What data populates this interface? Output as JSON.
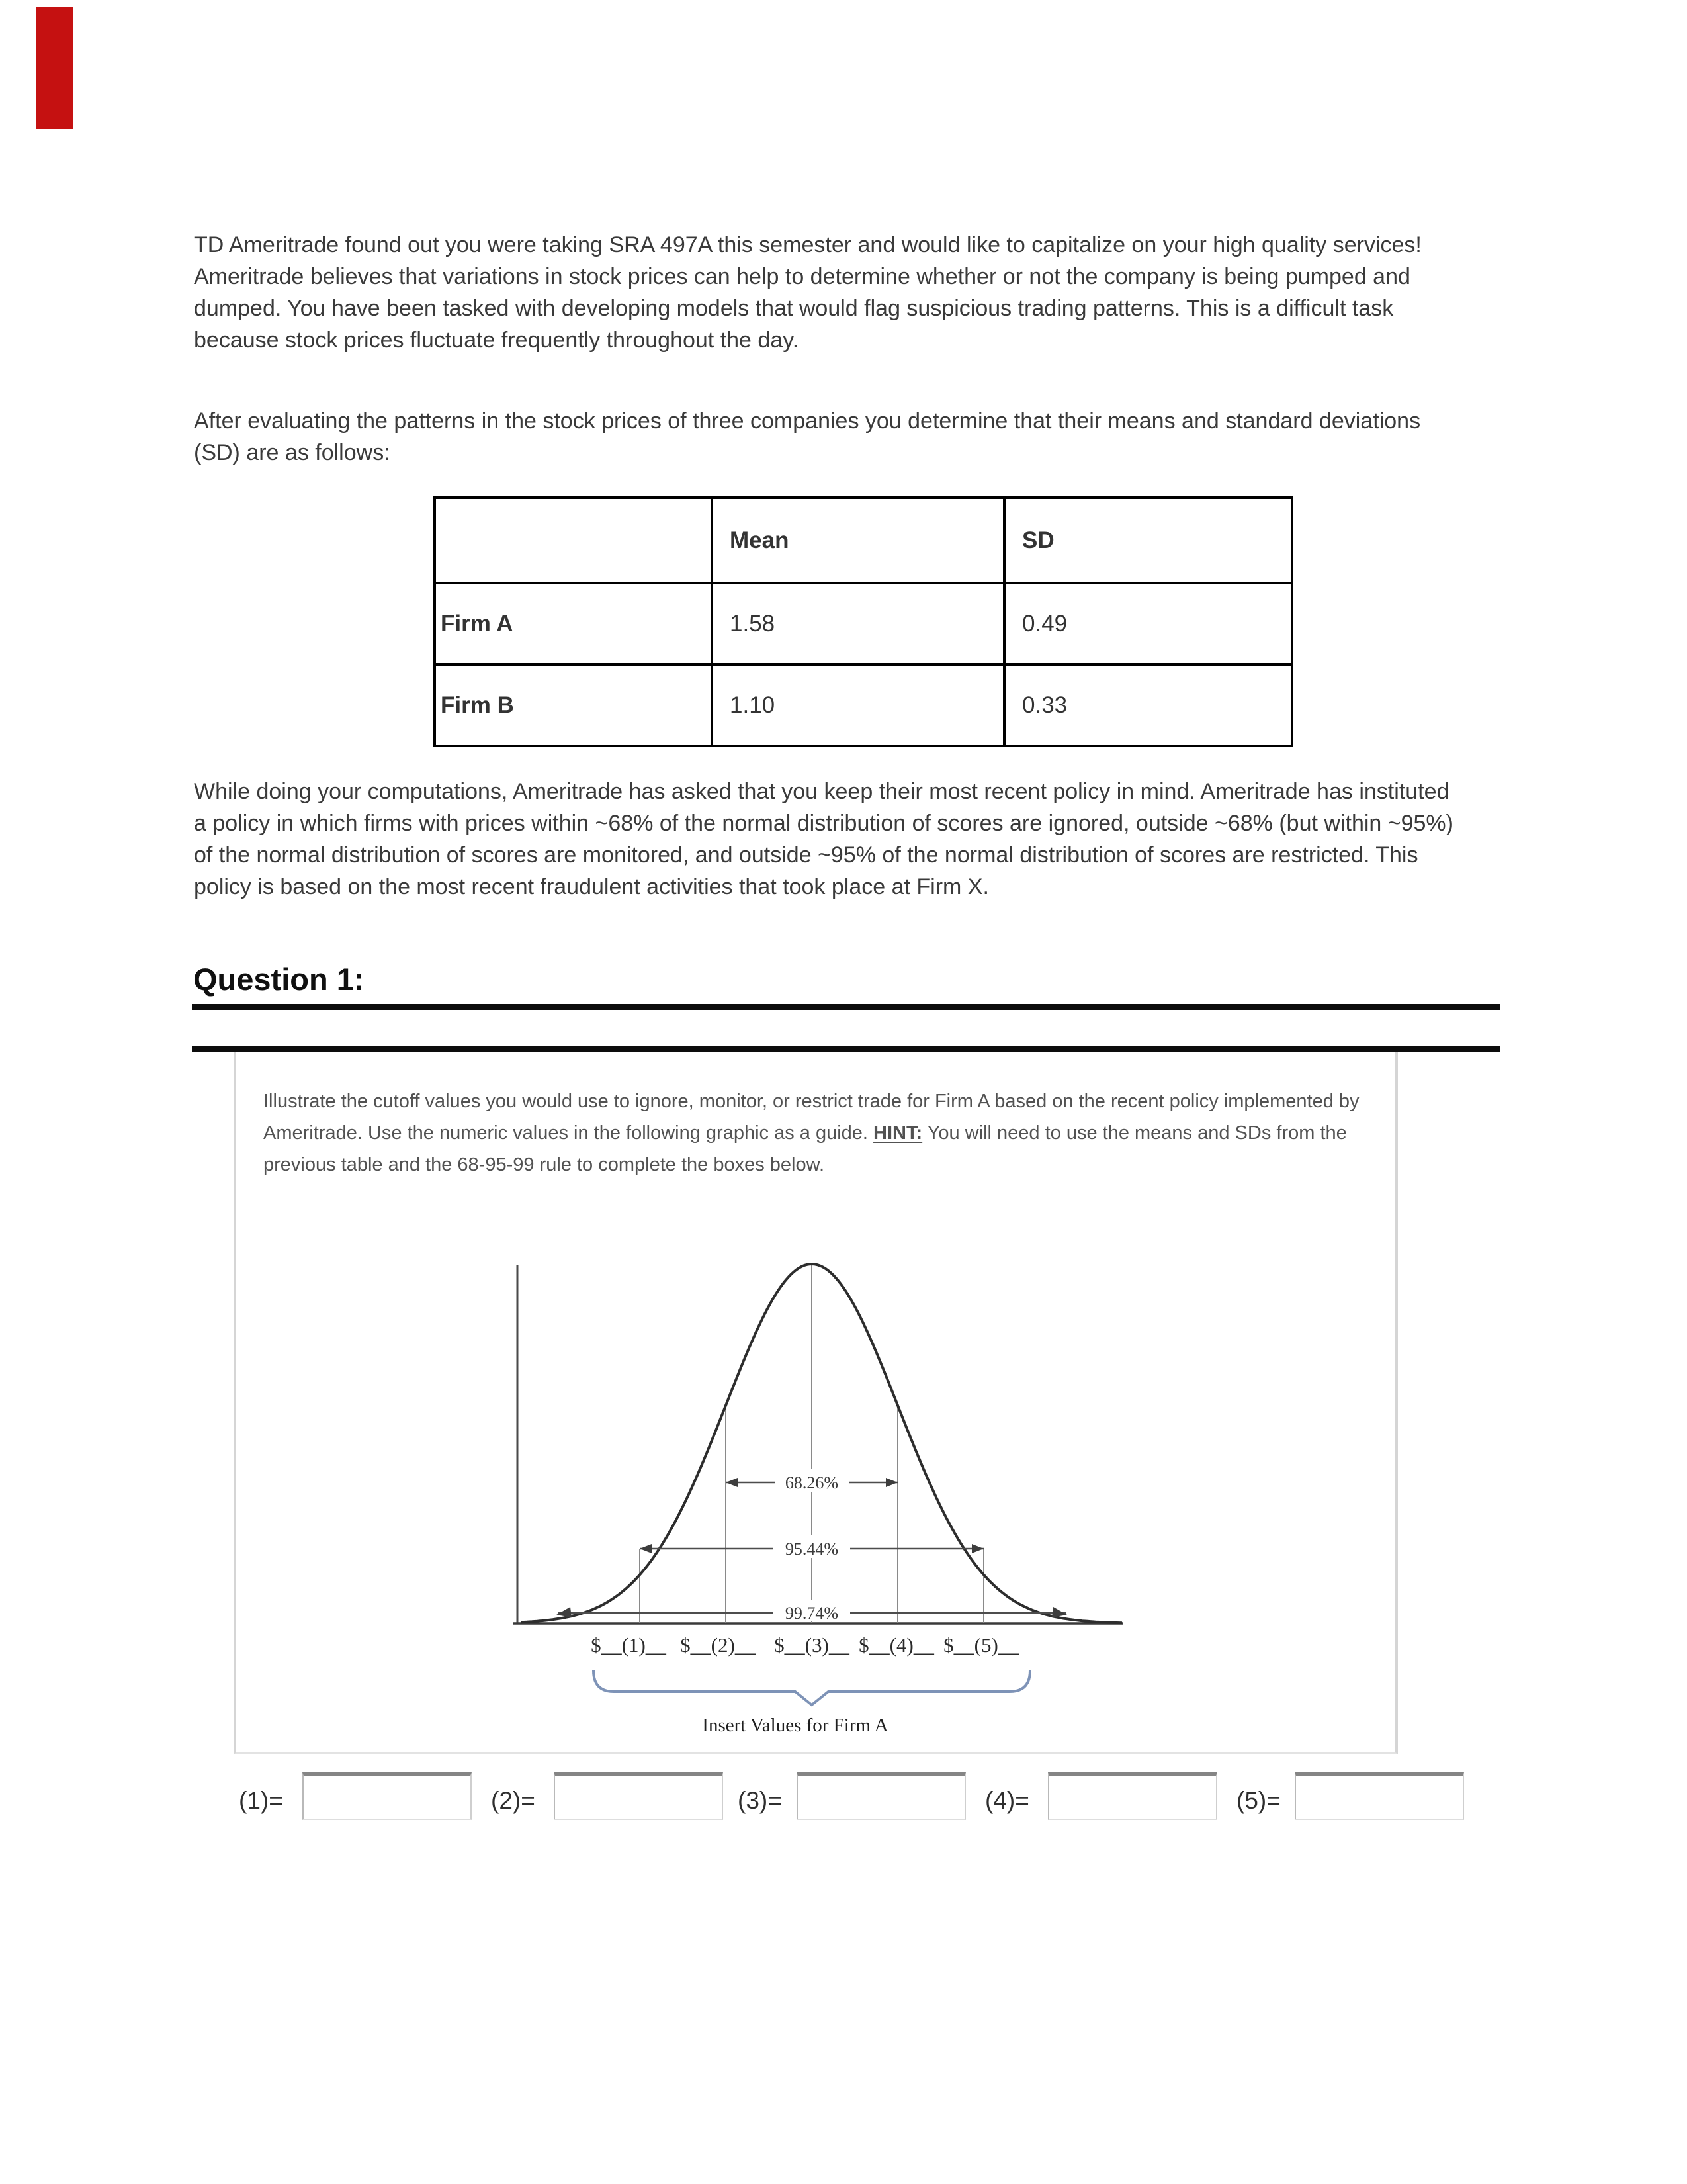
{
  "annotations": {
    "red_mark_color": "#c51111"
  },
  "intro": {
    "paragraph1": "TD Ameritrade found out you were taking SRA 497A this semester and would like to capitalize on your high quality services! Ameritrade believes that variations in stock prices can help to determine whether or not the company is being pumped and dumped. You have been tasked with developing models that would flag suspicious trading patterns. This is a difficult task because stock prices fluctuate frequently throughout the day.",
    "paragraph2": "After evaluating the patterns in the stock prices of three companies you determine that their means and standard deviations (SD) are as follows:"
  },
  "stats_table": {
    "columns": [
      "",
      "Mean",
      "SD"
    ],
    "rows": [
      {
        "label": "Firm A",
        "mean": "1.58",
        "sd": "0.49"
      },
      {
        "label": "Firm B",
        "mean": "1.10",
        "sd": "0.33"
      }
    ]
  },
  "policy_paragraph": "While doing your computations, Ameritrade has asked that you keep their most recent policy in mind. Ameritrade has instituted a policy in which firms with prices within ~68% of the normal distribution of scores are ignored, outside ~68% (but within ~95%) of the normal distribution of scores are monitored, and outside ~95% of the normal distribution of scores are restricted. This policy is based on the most recent fraudulent activities that took place at Firm X.",
  "question1": {
    "heading": "Question 1:",
    "instructions_before_hint": "Illustrate the cutoff values you would use to ignore, monitor, or restrict trade for Firm A based on the recent policy implemented by Ameritrade. Use the numeric values in the following graphic as a guide. ",
    "hint_label": "HINT:",
    "instructions_after_hint": " You will need to use the means and SDs from the previous table and the 68-95-99 rule to complete the boxes below."
  },
  "chart_data": {
    "type": "line",
    "title": "Normal distribution bell curve with 68-95-99.7 rule bands",
    "curve": {
      "distribution": "normal",
      "mu": 0,
      "sigma": 1,
      "x_range": [
        -3.4,
        3.6
      ]
    },
    "band_labels": [
      "68.26%",
      "95.44%",
      "99.74%"
    ],
    "band_spans_sigma": [
      [
        -1,
        1
      ],
      [
        -2,
        2
      ],
      [
        -3,
        3
      ]
    ],
    "x_axis_placeholders": [
      "$__(1)__",
      "$__(2)__",
      "$__(3)__",
      "$__(4)__",
      "$__(5)__"
    ],
    "brace_label": "Insert Values for Firm A",
    "brace_color": "#7e93b7",
    "legend_position": "none",
    "grid": false
  },
  "answers": {
    "fields": [
      {
        "label": "(1)=",
        "value": ""
      },
      {
        "label": "(2)=",
        "value": ""
      },
      {
        "label": "(3)=",
        "value": ""
      },
      {
        "label": "(4)=",
        "value": ""
      },
      {
        "label": "(5)=",
        "value": ""
      }
    ]
  }
}
